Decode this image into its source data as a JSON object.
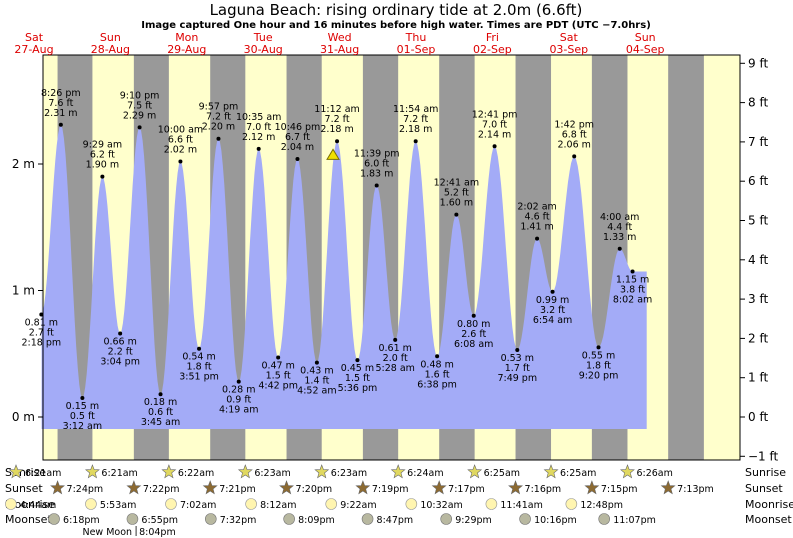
{
  "header": {
    "title": "Laguna Beach: rising  ordinary tide at 2.0m (6.6ft)",
    "subtitle": "Image captured One hour and 16 minutes before high water. Times are PDT (UTC −7.0hrs)"
  },
  "colors": {
    "day": "#ffffcc",
    "night": "#999999",
    "tide_fill": "#a3abf7",
    "day_label": "#dd0000",
    "current_marker": "#f0e000",
    "sun_icon": "#e0d860",
    "sunset_icon": "#8c6a32",
    "moonrise_icon": "#fff5b0",
    "moonset_icon": "#b8b8a0"
  },
  "chart_data": {
    "type": "area",
    "ylabel_left_unit": "m",
    "ylabel_right_unit": "ft",
    "ylim_m": [
      -0.3,
      2.88
    ],
    "left_ticks": [
      {
        "v": 0,
        "label": "0 m"
      },
      {
        "v": 1,
        "label": "1 m"
      },
      {
        "v": 2,
        "label": "2 m"
      }
    ],
    "right_ticks": [
      {
        "ft": -1,
        "label": "−1 ft"
      },
      {
        "ft": 0,
        "label": "0 ft"
      },
      {
        "ft": 1,
        "label": "1 ft"
      },
      {
        "ft": 2,
        "label": "2 ft"
      },
      {
        "ft": 3,
        "label": "3 ft"
      },
      {
        "ft": 4,
        "label": "4 ft"
      },
      {
        "ft": 5,
        "label": "5 ft"
      },
      {
        "ft": 6,
        "label": "6 ft"
      },
      {
        "ft": 7,
        "label": "7 ft"
      },
      {
        "ft": 8,
        "label": "8 ft"
      },
      {
        "ft": 9,
        "label": "9 ft"
      }
    ],
    "days": [
      {
        "dow": "Sat",
        "date": "27-Aug"
      },
      {
        "dow": "Sun",
        "date": "28-Aug"
      },
      {
        "dow": "Mon",
        "date": "29-Aug"
      },
      {
        "dow": "Tue",
        "date": "30-Aug"
      },
      {
        "dow": "Wed",
        "date": "31-Aug"
      },
      {
        "dow": "Thu",
        "date": "01-Sep"
      },
      {
        "dow": "Fri",
        "date": "02-Sep"
      },
      {
        "dow": "Sat",
        "date": "03-Sep"
      },
      {
        "dow": "Sun",
        "date": "04-Sep"
      }
    ],
    "series_start": {
      "t": 0.6,
      "m": 1.72
    },
    "series_end": {
      "t": 8.52,
      "m": 1.15
    },
    "extremes": [
      {
        "day": 0,
        "time": "2:18 pm",
        "m": 0.81,
        "ft": "2.7 ft",
        "type": "low"
      },
      {
        "day": 0,
        "time": "8:26 pm",
        "m": 2.31,
        "ft": "7.6 ft",
        "type": "high"
      },
      {
        "day": 1,
        "time": "3:12 am",
        "m": 0.15,
        "ft": "0.5 ft",
        "type": "low"
      },
      {
        "day": 1,
        "time": "9:29 am",
        "m": 1.9,
        "ft": "6.2 ft",
        "type": "high"
      },
      {
        "day": 1,
        "time": "3:04 pm",
        "m": 0.66,
        "ft": "2.2 ft",
        "type": "low"
      },
      {
        "day": 1,
        "time": "9:10 pm",
        "m": 2.29,
        "ft": "7.5 ft",
        "type": "high"
      },
      {
        "day": 2,
        "time": "3:45 am",
        "m": 0.18,
        "ft": "0.6 ft",
        "type": "low"
      },
      {
        "day": 2,
        "time": "10:00 am",
        "m": 2.02,
        "ft": "6.6 ft",
        "type": "high"
      },
      {
        "day": 2,
        "time": "3:51 pm",
        "m": 0.54,
        "ft": "1.8 ft",
        "type": "low"
      },
      {
        "day": 2,
        "time": "9:57 pm",
        "m": 2.2,
        "ft": "7.2 ft",
        "type": "high"
      },
      {
        "day": 3,
        "time": "4:19 am",
        "m": 0.28,
        "ft": "0.9 ft",
        "type": "low"
      },
      {
        "day": 3,
        "time": "10:35 am",
        "m": 2.12,
        "ft": "7.0 ft",
        "type": "high"
      },
      {
        "day": 3,
        "time": "4:42 pm",
        "m": 0.47,
        "ft": "1.5 ft",
        "type": "low"
      },
      {
        "day": 3,
        "time": "10:46 pm",
        "m": 2.04,
        "ft": "6.7 ft",
        "type": "high"
      },
      {
        "day": 4,
        "time": "4:52 am",
        "m": 0.43,
        "ft": "1.4 ft",
        "type": "low"
      },
      {
        "day": 4,
        "time": "11:12 am",
        "m": 2.18,
        "ft": "7.2 ft",
        "type": "high"
      },
      {
        "day": 4,
        "time": "5:36 pm",
        "m": 0.45,
        "ft": "1.5 ft",
        "type": "low"
      },
      {
        "day": 4,
        "time": "11:39 pm",
        "m": 1.83,
        "ft": "6.0 ft",
        "type": "high"
      },
      {
        "day": 5,
        "time": "5:28 am",
        "m": 0.61,
        "ft": "2.0 ft",
        "type": "low"
      },
      {
        "day": 5,
        "time": "11:54 am",
        "m": 2.18,
        "ft": "7.2 ft",
        "type": "high"
      },
      {
        "day": 5,
        "time": "6:38 pm",
        "m": 0.48,
        "ft": "1.6 ft",
        "type": "low"
      },
      {
        "day": 6,
        "time": "12:41 am",
        "m": 1.6,
        "ft": "5.2 ft",
        "type": "high"
      },
      {
        "day": 6,
        "time": "6:08 am",
        "m": 0.8,
        "ft": "2.6 ft",
        "type": "low"
      },
      {
        "day": 6,
        "time": "12:41 pm",
        "m": 2.14,
        "ft": "7.0 ft",
        "type": "high"
      },
      {
        "day": 6,
        "time": "7:49 pm",
        "m": 0.53,
        "ft": "1.7 ft",
        "type": "low"
      },
      {
        "day": 7,
        "time": "2:02 am",
        "m": 1.41,
        "ft": "4.6 ft",
        "type": "high"
      },
      {
        "day": 7,
        "time": "6:54 am",
        "m": 0.99,
        "ft": "3.2 ft",
        "type": "low"
      },
      {
        "day": 7,
        "time": "1:42 pm",
        "m": 2.06,
        "ft": "6.8 ft",
        "type": "high"
      },
      {
        "day": 7,
        "time": "9:20 pm",
        "m": 0.55,
        "ft": "1.8 ft",
        "type": "low"
      },
      {
        "day": 8,
        "time": "4:00 am",
        "m": 1.33,
        "ft": "4.4 ft",
        "type": "high"
      },
      {
        "day": 8,
        "time": "8:02 am",
        "m": 1.15,
        "ft": "3.8 ft",
        "type": "low"
      }
    ],
    "current_marker": {
      "day": 4,
      "time": "9:56 am"
    },
    "sunrise": [
      "6:21am",
      "6:21am",
      "6:22am",
      "6:23am",
      "6:23am",
      "6:24am",
      "6:25am",
      "6:25am",
      "6:26am"
    ],
    "sunset": [
      "7:24pm",
      "7:22pm",
      "7:21pm",
      "7:20pm",
      "7:19pm",
      "7:17pm",
      "7:16pm",
      "7:15pm",
      "7:13pm"
    ],
    "moonrise": [
      {
        "day": 0,
        "time": "4:44am"
      },
      {
        "day": 1,
        "time": "5:53am"
      },
      {
        "day": 2,
        "time": "7:02am"
      },
      {
        "day": 3,
        "time": "8:12am"
      },
      {
        "day": 4,
        "time": "9:22am"
      },
      {
        "day": 5,
        "time": "10:32am"
      },
      {
        "day": 6,
        "time": "11:41am"
      },
      {
        "day": 7,
        "time": "12:48pm"
      }
    ],
    "moonset": [
      {
        "day": 0,
        "time": "6:18pm"
      },
      {
        "day": 1,
        "time": "6:55pm"
      },
      {
        "day": 2,
        "time": "7:32pm"
      },
      {
        "day": 3,
        "time": "8:09pm"
      },
      {
        "day": 4,
        "time": "8:47pm"
      },
      {
        "day": 5,
        "time": "9:29pm"
      },
      {
        "day": 6,
        "time": "10:16pm"
      },
      {
        "day": 7,
        "time": "11:07pm"
      }
    ],
    "new_moon": {
      "day": 1,
      "time": "8:04pm",
      "label": "New Moon"
    }
  },
  "rows": {
    "sunrise_label": "Sunrise",
    "sunset_label": "Sunset",
    "moonrise_label": "Moonrise",
    "moonset_label": "Moonset"
  }
}
